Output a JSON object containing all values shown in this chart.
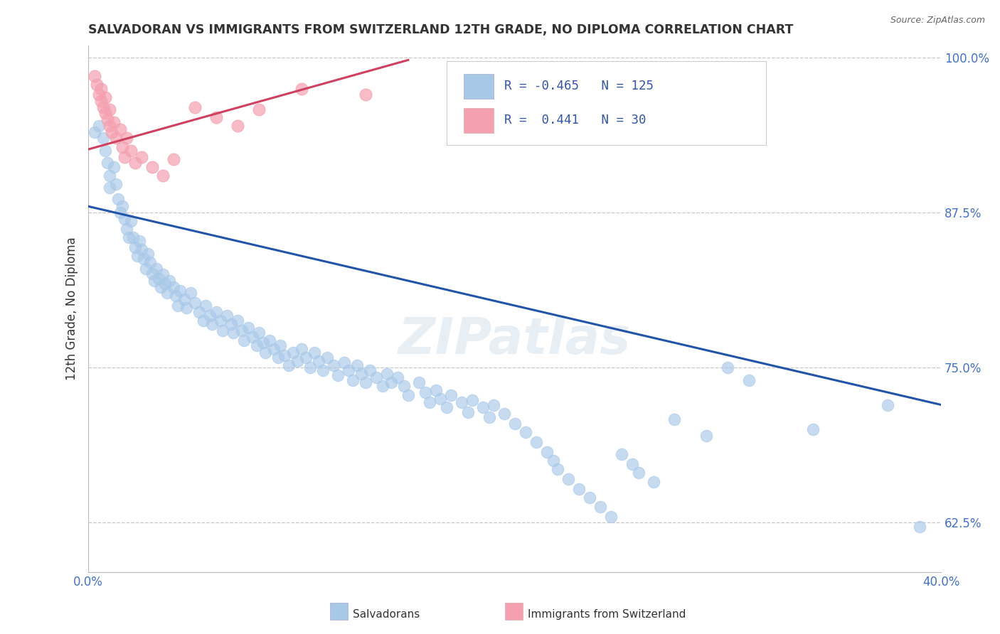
{
  "title": "SALVADORAN VS IMMIGRANTS FROM SWITZERLAND 12TH GRADE, NO DIPLOMA CORRELATION CHART",
  "source": "Source: ZipAtlas.com",
  "ylabel": "12th Grade, No Diploma",
  "legend_labels": [
    "Salvadorans",
    "Immigrants from Switzerland"
  ],
  "xlim": [
    0.0,
    0.4
  ],
  "ylim": [
    0.585,
    1.01
  ],
  "yticks": [
    0.625,
    0.75,
    0.875,
    1.0
  ],
  "ytick_labels": [
    "62.5%",
    "75.0%",
    "87.5%",
    "100.0%"
  ],
  "xticks": [
    0.0,
    0.1,
    0.2,
    0.3,
    0.4
  ],
  "xtick_labels": [
    "0.0%",
    "",
    "",
    "",
    "40.0%"
  ],
  "blue_color": "#a8c8e8",
  "pink_color": "#f4a0b0",
  "blue_line_color": "#2255aa",
  "pink_line_color": "#d04060",
  "R_blue": -0.465,
  "N_blue": 125,
  "R_pink": 0.441,
  "N_pink": 30,
  "watermark": "ZIPatlas",
  "blue_scatter_x": [
    0.003,
    0.005,
    0.007,
    0.008,
    0.009,
    0.01,
    0.01,
    0.012,
    0.013,
    0.014,
    0.015,
    0.016,
    0.017,
    0.018,
    0.019,
    0.02,
    0.021,
    0.022,
    0.023,
    0.024,
    0.025,
    0.026,
    0.027,
    0.028,
    0.029,
    0.03,
    0.031,
    0.032,
    0.033,
    0.034,
    0.035,
    0.036,
    0.037,
    0.038,
    0.04,
    0.041,
    0.042,
    0.043,
    0.045,
    0.046,
    0.048,
    0.05,
    0.052,
    0.054,
    0.055,
    0.057,
    0.058,
    0.06,
    0.062,
    0.063,
    0.065,
    0.067,
    0.068,
    0.07,
    0.072,
    0.073,
    0.075,
    0.077,
    0.079,
    0.08,
    0.082,
    0.083,
    0.085,
    0.087,
    0.089,
    0.09,
    0.092,
    0.094,
    0.096,
    0.098,
    0.1,
    0.102,
    0.104,
    0.106,
    0.108,
    0.11,
    0.112,
    0.115,
    0.117,
    0.12,
    0.122,
    0.124,
    0.126,
    0.128,
    0.13,
    0.132,
    0.135,
    0.138,
    0.14,
    0.142,
    0.145,
    0.148,
    0.15,
    0.155,
    0.158,
    0.16,
    0.163,
    0.165,
    0.168,
    0.17,
    0.175,
    0.178,
    0.18,
    0.185,
    0.188,
    0.19,
    0.195,
    0.2,
    0.205,
    0.21,
    0.215,
    0.218,
    0.22,
    0.225,
    0.23,
    0.235,
    0.24,
    0.245,
    0.25,
    0.255,
    0.258,
    0.265,
    0.31,
    0.34,
    0.375,
    0.39,
    0.275,
    0.29,
    0.3
  ],
  "blue_scatter_y": [
    0.94,
    0.945,
    0.935,
    0.925,
    0.915,
    0.905,
    0.895,
    0.912,
    0.898,
    0.886,
    0.875,
    0.88,
    0.87,
    0.862,
    0.855,
    0.868,
    0.855,
    0.847,
    0.84,
    0.852,
    0.845,
    0.838,
    0.83,
    0.842,
    0.835,
    0.826,
    0.82,
    0.83,
    0.822,
    0.815,
    0.825,
    0.818,
    0.81,
    0.82,
    0.815,
    0.808,
    0.8,
    0.812,
    0.805,
    0.798,
    0.81,
    0.802,
    0.795,
    0.788,
    0.8,
    0.792,
    0.785,
    0.795,
    0.788,
    0.78,
    0.792,
    0.785,
    0.778,
    0.788,
    0.78,
    0.772,
    0.782,
    0.775,
    0.768,
    0.778,
    0.77,
    0.762,
    0.772,
    0.765,
    0.758,
    0.768,
    0.76,
    0.752,
    0.762,
    0.755,
    0.765,
    0.758,
    0.75,
    0.762,
    0.755,
    0.748,
    0.758,
    0.752,
    0.744,
    0.754,
    0.748,
    0.74,
    0.752,
    0.745,
    0.738,
    0.748,
    0.742,
    0.735,
    0.745,
    0.738,
    0.742,
    0.735,
    0.728,
    0.738,
    0.73,
    0.722,
    0.732,
    0.725,
    0.718,
    0.728,
    0.722,
    0.714,
    0.724,
    0.718,
    0.71,
    0.72,
    0.713,
    0.705,
    0.698,
    0.69,
    0.682,
    0.675,
    0.668,
    0.66,
    0.652,
    0.645,
    0.638,
    0.63,
    0.68,
    0.672,
    0.665,
    0.658,
    0.74,
    0.7,
    0.72,
    0.622,
    0.708,
    0.695,
    0.75
  ],
  "pink_scatter_x": [
    0.003,
    0.004,
    0.005,
    0.006,
    0.006,
    0.007,
    0.008,
    0.008,
    0.009,
    0.01,
    0.01,
    0.011,
    0.012,
    0.013,
    0.015,
    0.016,
    0.017,
    0.018,
    0.02,
    0.022,
    0.025,
    0.03,
    0.035,
    0.04,
    0.05,
    0.06,
    0.07,
    0.08,
    0.1,
    0.13
  ],
  "pink_scatter_y": [
    0.985,
    0.978,
    0.97,
    0.965,
    0.975,
    0.96,
    0.955,
    0.968,
    0.95,
    0.945,
    0.958,
    0.94,
    0.948,
    0.935,
    0.942,
    0.928,
    0.92,
    0.935,
    0.925,
    0.915,
    0.92,
    0.912,
    0.905,
    0.918,
    0.96,
    0.952,
    0.945,
    0.958,
    0.975,
    0.97
  ],
  "blue_trend_x": [
    0.0,
    0.4
  ],
  "blue_trend_y": [
    0.88,
    0.72
  ],
  "pink_trend_x": [
    0.0,
    0.15
  ],
  "pink_trend_y": [
    0.926,
    0.998
  ]
}
